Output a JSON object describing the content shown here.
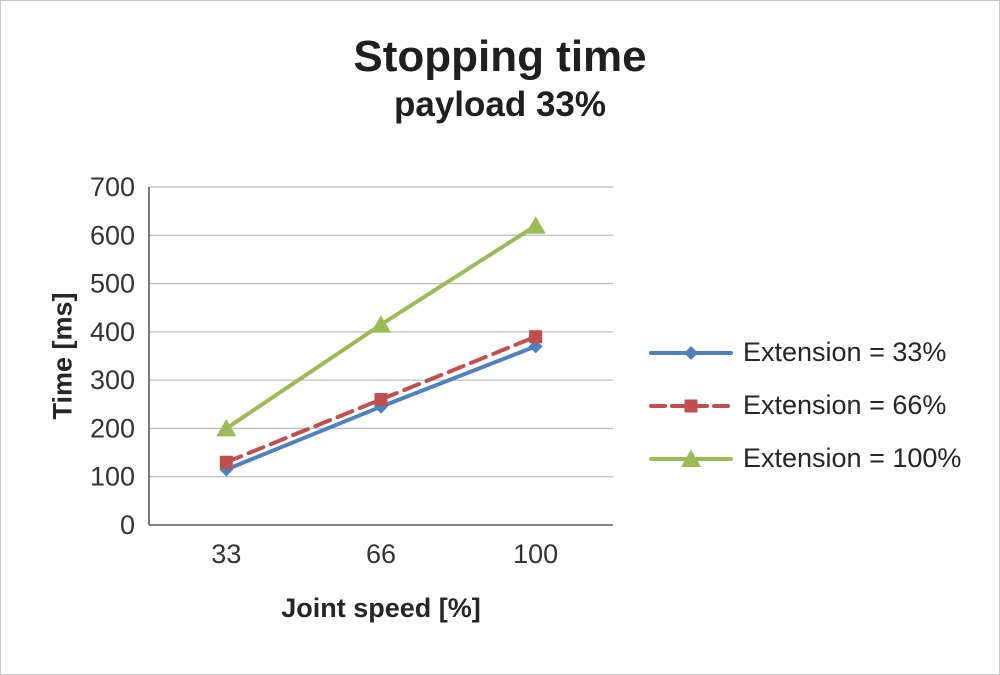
{
  "chart_data": {
    "type": "line",
    "title": "Stopping time",
    "subtitle": "payload 33%",
    "xlabel": "Joint speed [%]",
    "ylabel": "Time [ms]",
    "categories": [
      "33",
      "66",
      "100"
    ],
    "series": [
      {
        "name": "Extension = 33%",
        "values": [
          115,
          245,
          370
        ],
        "color": "#4f81bd",
        "marker": "diamond",
        "dash": "solid"
      },
      {
        "name": "Extension = 66%",
        "values": [
          130,
          260,
          390
        ],
        "color": "#c0504d",
        "marker": "square",
        "dash": "dashed"
      },
      {
        "name": "Extension = 100%",
        "values": [
          200,
          415,
          620
        ],
        "color": "#9bbb59",
        "marker": "triangle",
        "dash": "solid"
      }
    ],
    "ylim": [
      0,
      700
    ],
    "ytick_step": 100,
    "grid": true,
    "legend_position": "right",
    "gridline_color": "#bfbfbf",
    "axis_color": "#595959",
    "tick_label_color": "#333333"
  }
}
